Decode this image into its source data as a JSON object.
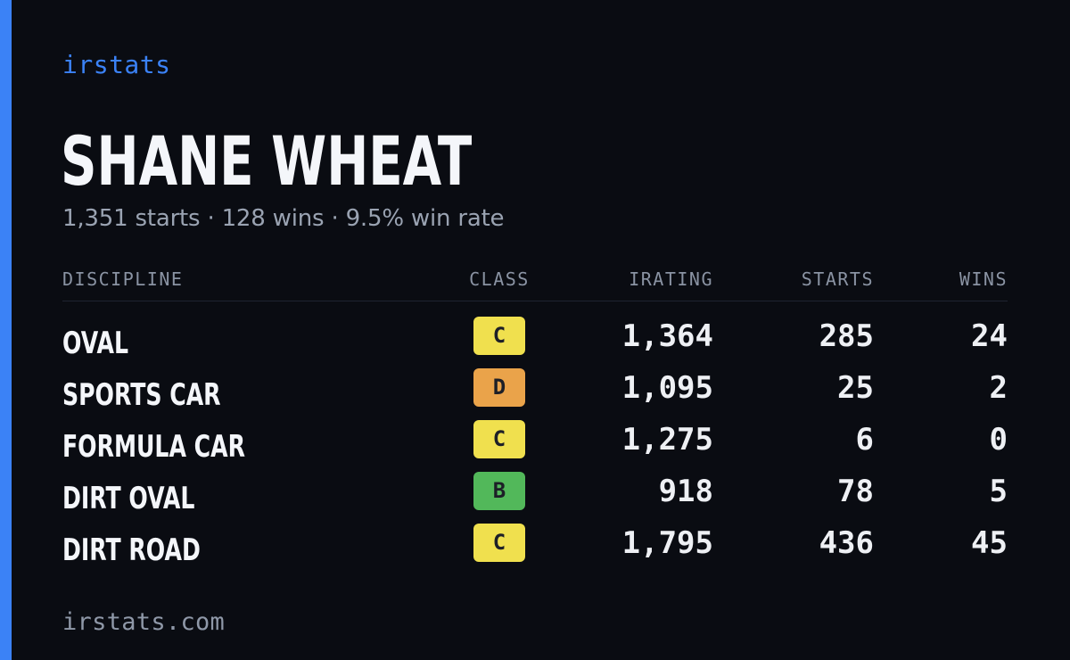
{
  "brand": "irstats",
  "driver": {
    "name": "SHANE WHEAT",
    "summary": "1,351 starts · 128 wins · 9.5% win rate"
  },
  "table": {
    "headers": {
      "discipline": "DISCIPLINE",
      "class": "CLASS",
      "irating": "IRATING",
      "starts": "STARTS",
      "wins": "WINS"
    },
    "rows": [
      {
        "discipline": "OVAL",
        "class": "C",
        "class_color": "#f0e04e",
        "irating": "1,364",
        "starts": "285",
        "wins": "24"
      },
      {
        "discipline": "SPORTS CAR",
        "class": "D",
        "class_color": "#eaa34a",
        "irating": "1,095",
        "starts": "25",
        "wins": "2"
      },
      {
        "discipline": "FORMULA CAR",
        "class": "C",
        "class_color": "#f0e04e",
        "irating": "1,275",
        "starts": "6",
        "wins": "0"
      },
      {
        "discipline": "DIRT OVAL",
        "class": "B",
        "class_color": "#52b85a",
        "irating": "918",
        "starts": "78",
        "wins": "5"
      },
      {
        "discipline": "DIRT ROAD",
        "class": "C",
        "class_color": "#f0e04e",
        "irating": "1,795",
        "starts": "436",
        "wins": "45"
      }
    ]
  },
  "footer": "irstats.com",
  "colors": {
    "accent": "#3b82f6",
    "background": "#0a0c12"
  }
}
